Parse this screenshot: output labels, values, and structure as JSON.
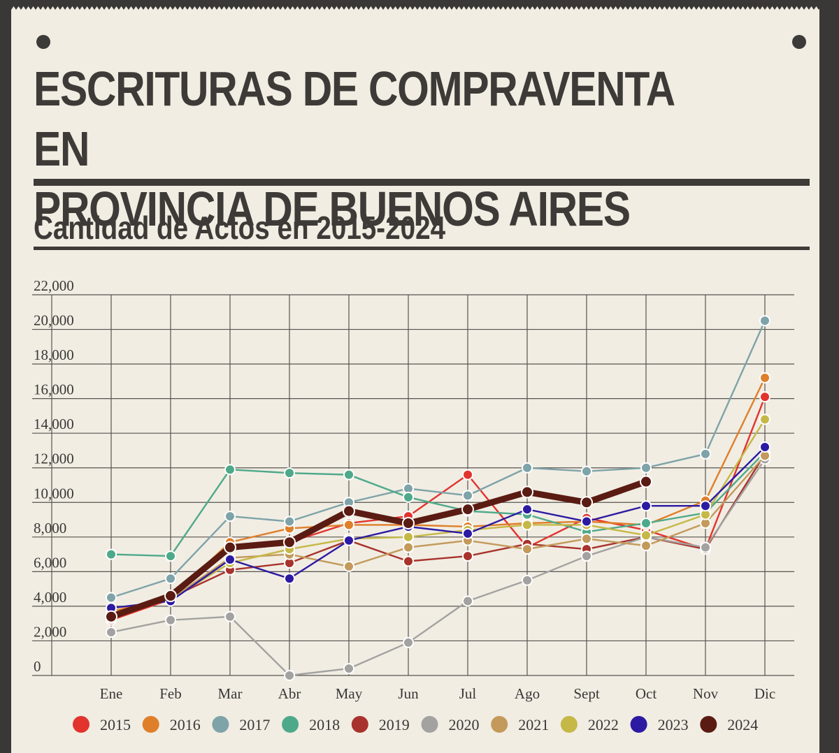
{
  "header": {
    "title": "ESCRITURAS DE COMPRAVENTA EN\nPROVINCIA DE BUENOS AIRES",
    "subtitle": "Cantidad de Actos en 2015-2024"
  },
  "colors": {
    "background": "#f1ede3",
    "frame": "#3a3836",
    "text": "#3d3a37",
    "grid": "#57544f"
  },
  "chart_data": {
    "type": "line",
    "title": "Cantidad de Actos en 2015-2024",
    "xlabel": "",
    "ylabel": "",
    "categories": [
      "Ene",
      "Feb",
      "Mar",
      "Abr",
      "May",
      "Jun",
      "Jul",
      "Ago",
      "Sept",
      "Oct",
      "Nov",
      "Dic"
    ],
    "ylim": [
      0,
      22000
    ],
    "yticks": [
      0,
      2000,
      4000,
      6000,
      8000,
      10000,
      12000,
      14000,
      16000,
      18000,
      20000,
      22000
    ],
    "ytick_labels": [
      "0",
      "2,000",
      "4,000",
      "6,000",
      "8,000",
      "10,000",
      "12,000",
      "14,000",
      "16,000",
      "18,000",
      "20,000",
      "22,000"
    ],
    "grid": true,
    "legend_position": "bottom",
    "series": [
      {
        "name": "2015",
        "color": "#e2332d",
        "values": [
          3200,
          4400,
          7400,
          7700,
          8800,
          9200,
          11600,
          7400,
          9100,
          8400,
          7300,
          16100
        ]
      },
      {
        "name": "2016",
        "color": "#df7f2a",
        "values": [
          3700,
          4500,
          7700,
          8500,
          8700,
          8700,
          8600,
          8800,
          8900,
          8700,
          10100,
          17200
        ]
      },
      {
        "name": "2017",
        "color": "#7ea3a8",
        "values": [
          4500,
          5600,
          9200,
          8900,
          10000,
          10800,
          10400,
          12000,
          11800,
          12000,
          12800,
          20500
        ]
      },
      {
        "name": "2018",
        "color": "#4ea98a",
        "values": [
          7000,
          6900,
          11900,
          11700,
          11600,
          10300,
          9500,
          9300,
          8300,
          8800,
          9400,
          12900
        ]
      },
      {
        "name": "2019",
        "color": "#a8332c",
        "values": [
          3300,
          4500,
          6100,
          6500,
          7800,
          6600,
          6900,
          7600,
          7300,
          8000,
          7300,
          12800
        ]
      },
      {
        "name": "2020",
        "color": "#a3a2a0",
        "values": [
          2500,
          3200,
          3400,
          0,
          400,
          1900,
          4300,
          5500,
          6900,
          8000,
          7400,
          12500
        ]
      },
      {
        "name": "2021",
        "color": "#c39a5b",
        "values": [
          3500,
          4400,
          6800,
          7000,
          6300,
          7400,
          7800,
          7300,
          7900,
          7500,
          8800,
          12700
        ]
      },
      {
        "name": "2022",
        "color": "#c5b847",
        "values": [
          3600,
          4400,
          6500,
          7300,
          7900,
          8000,
          8400,
          8700,
          8700,
          8100,
          9300,
          14800
        ]
      },
      {
        "name": "2023",
        "color": "#2c1aa2",
        "values": [
          3900,
          4300,
          6700,
          5600,
          7800,
          8600,
          8200,
          9600,
          8900,
          9800,
          9800,
          13200
        ]
      },
      {
        "name": "2024",
        "color": "#5a1b12",
        "values": [
          3400,
          4600,
          7400,
          7700,
          9500,
          8800,
          9600,
          10600,
          10000,
          11200,
          null,
          null
        ]
      }
    ]
  }
}
